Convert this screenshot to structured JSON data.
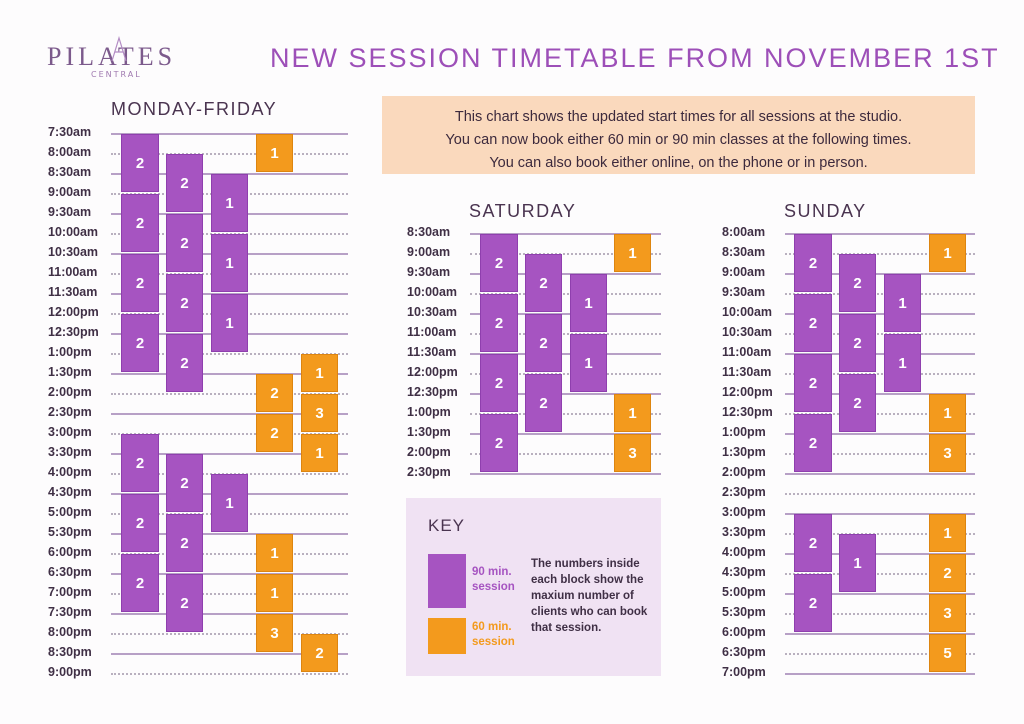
{
  "brand": {
    "name": "PILATES",
    "sub": "CENTRAL"
  },
  "title": "NEW SESSION TIMETABLE FROM NOVEMBER 1ST",
  "note": [
    "This chart shows the updated start times for all sessions at the studio.",
    "You can now book either 60 min or 90 min classes at the following times.",
    "You can also book either online, on the phone or in person."
  ],
  "colors": {
    "purple": "#a654c1",
    "orange": "#f39a1d",
    "title": "#9d4fb8",
    "note_bg": "#fad9bd",
    "key_bg": "#f0e2f3"
  },
  "schedules": [
    {
      "id": "weekday",
      "title": "MONDAY-FRIDAY",
      "times": [
        "7:30am",
        "8:00am",
        "8:30am",
        "9:00am",
        "9:30am",
        "10:00am",
        "10:30am",
        "11:00am",
        "11:30am",
        "12:00pm",
        "12:30pm",
        "1:00pm",
        "1:30pm",
        "2:00pm",
        "2:30pm",
        "3:00pm",
        "3:30pm",
        "4:00pm",
        "4:30pm",
        "5:00pm",
        "5:30pm",
        "6:00pm",
        "6:30pm",
        "7:00pm",
        "7:30pm",
        "8:00pm",
        "8:30pm",
        "9:00pm"
      ],
      "sessions": [
        {
          "col": 0,
          "start": "7:30am",
          "type": "90",
          "clients": 2
        },
        {
          "col": 0,
          "start": "9:00am",
          "type": "90",
          "clients": 2
        },
        {
          "col": 0,
          "start": "10:30am",
          "type": "90",
          "clients": 2
        },
        {
          "col": 0,
          "start": "12:00pm",
          "type": "90",
          "clients": 2
        },
        {
          "col": 1,
          "start": "8:00am",
          "type": "90",
          "clients": 2
        },
        {
          "col": 1,
          "start": "9:30am",
          "type": "90",
          "clients": 2
        },
        {
          "col": 1,
          "start": "11:00am",
          "type": "90",
          "clients": 2
        },
        {
          "col": 1,
          "start": "12:30pm",
          "type": "90",
          "clients": 2
        },
        {
          "col": 2,
          "start": "8:30am",
          "type": "90",
          "clients": 1
        },
        {
          "col": 2,
          "start": "10:00am",
          "type": "90",
          "clients": 1
        },
        {
          "col": 2,
          "start": "11:30am",
          "type": "90",
          "clients": 1
        },
        {
          "col": 3,
          "start": "7:30am",
          "type": "60",
          "clients": 1
        },
        {
          "col": 3,
          "start": "1:30pm",
          "type": "60",
          "clients": 2
        },
        {
          "col": 3,
          "start": "2:30pm",
          "type": "60",
          "clients": 2
        },
        {
          "col": 4,
          "start": "1:00pm",
          "type": "60",
          "clients": 1
        },
        {
          "col": 4,
          "start": "2:00pm",
          "type": "60",
          "clients": 3
        },
        {
          "col": 4,
          "start": "3:00pm",
          "type": "60",
          "clients": 1
        },
        {
          "col": 0,
          "start": "3:00pm",
          "type": "90",
          "clients": 2
        },
        {
          "col": 0,
          "start": "4:30pm",
          "type": "90",
          "clients": 2
        },
        {
          "col": 0,
          "start": "6:00pm",
          "type": "90",
          "clients": 2
        },
        {
          "col": 1,
          "start": "3:30pm",
          "type": "90",
          "clients": 2
        },
        {
          "col": 1,
          "start": "5:00pm",
          "type": "90",
          "clients": 2
        },
        {
          "col": 1,
          "start": "6:30pm",
          "type": "90",
          "clients": 2
        },
        {
          "col": 2,
          "start": "4:00pm",
          "type": "90",
          "clients": 1
        },
        {
          "col": 3,
          "start": "5:30pm",
          "type": "60",
          "clients": 1
        },
        {
          "col": 3,
          "start": "6:30pm",
          "type": "60",
          "clients": 1
        },
        {
          "col": 3,
          "start": "7:30pm",
          "type": "60",
          "clients": 3
        },
        {
          "col": 4,
          "start": "8:00pm",
          "type": "60",
          "clients": 2
        }
      ]
    },
    {
      "id": "saturday",
      "title": "SATURDAY",
      "times": [
        "8:30am",
        "9:00am",
        "9:30am",
        "10:00am",
        "10:30am",
        "11:00am",
        "11:30am",
        "12:00pm",
        "12:30pm",
        "1:00pm",
        "1:30pm",
        "2:00pm",
        "2:30pm"
      ],
      "sessions": [
        {
          "col": 0,
          "start": "8:30am",
          "type": "90",
          "clients": 2
        },
        {
          "col": 0,
          "start": "10:00am",
          "type": "90",
          "clients": 2
        },
        {
          "col": 0,
          "start": "11:30am",
          "type": "90",
          "clients": 2
        },
        {
          "col": 0,
          "start": "1:00pm",
          "type": "90",
          "clients": 2
        },
        {
          "col": 1,
          "start": "9:00am",
          "type": "90",
          "clients": 2
        },
        {
          "col": 1,
          "start": "10:30am",
          "type": "90",
          "clients": 2
        },
        {
          "col": 1,
          "start": "12:00pm",
          "type": "90",
          "clients": 2
        },
        {
          "col": 2,
          "start": "9:30am",
          "type": "90",
          "clients": 1
        },
        {
          "col": 2,
          "start": "11:00am",
          "type": "90",
          "clients": 1
        },
        {
          "col": 3,
          "start": "8:30am",
          "type": "60",
          "clients": 1
        },
        {
          "col": 3,
          "start": "12:30pm",
          "type": "60",
          "clients": 1
        },
        {
          "col": 3,
          "start": "1:30pm",
          "type": "60",
          "clients": 3
        }
      ]
    },
    {
      "id": "sunday",
      "title": "SUNDAY",
      "times": [
        "8:00am",
        "8:30am",
        "9:00am",
        "9:30am",
        "10:00am",
        "10:30am",
        "11:00am",
        "11:30am",
        "12:00pm",
        "12:30pm",
        "1:00pm",
        "1:30pm",
        "2:00pm",
        "2:30pm",
        "3:00pm",
        "3:30pm",
        "4:00pm",
        "4:30pm",
        "5:00pm",
        "5:30pm",
        "6:00pm",
        "6:30pm",
        "7:00pm"
      ],
      "sessions": [
        {
          "col": 0,
          "start": "8:00am",
          "type": "90",
          "clients": 2
        },
        {
          "col": 0,
          "start": "9:30am",
          "type": "90",
          "clients": 2
        },
        {
          "col": 0,
          "start": "11:00am",
          "type": "90",
          "clients": 2
        },
        {
          "col": 0,
          "start": "12:30pm",
          "type": "90",
          "clients": 2
        },
        {
          "col": 1,
          "start": "8:30am",
          "type": "90",
          "clients": 2
        },
        {
          "col": 1,
          "start": "10:00am",
          "type": "90",
          "clients": 2
        },
        {
          "col": 1,
          "start": "11:30am",
          "type": "90",
          "clients": 2
        },
        {
          "col": 2,
          "start": "9:00am",
          "type": "90",
          "clients": 1
        },
        {
          "col": 2,
          "start": "10:30am",
          "type": "90",
          "clients": 1
        },
        {
          "col": 3,
          "start": "8:00am",
          "type": "60",
          "clients": 1
        },
        {
          "col": 3,
          "start": "12:00pm",
          "type": "60",
          "clients": 1
        },
        {
          "col": 3,
          "start": "1:00pm",
          "type": "60",
          "clients": 3
        },
        {
          "col": 0,
          "start": "3:00pm",
          "type": "90",
          "clients": 2
        },
        {
          "col": 0,
          "start": "4:30pm",
          "type": "90",
          "clients": 2
        },
        {
          "col": 1,
          "start": "3:30pm",
          "type": "90",
          "clients": 1
        },
        {
          "col": 3,
          "start": "3:00pm",
          "type": "60",
          "clients": 1
        },
        {
          "col": 3,
          "start": "4:00pm",
          "type": "60",
          "clients": 2
        },
        {
          "col": 3,
          "start": "5:00pm",
          "type": "60",
          "clients": 3
        },
        {
          "col": 3,
          "start": "6:00pm",
          "type": "60",
          "clients": 5
        }
      ]
    }
  ],
  "key": {
    "title": "KEY",
    "items": [
      {
        "type": "90",
        "label_line1": "90 min.",
        "label_line2": "session"
      },
      {
        "type": "60",
        "label_line1": "60 min.",
        "label_line2": "session"
      }
    ],
    "description": "The numbers inside each block show the maxium number of clients who can book that session."
  }
}
